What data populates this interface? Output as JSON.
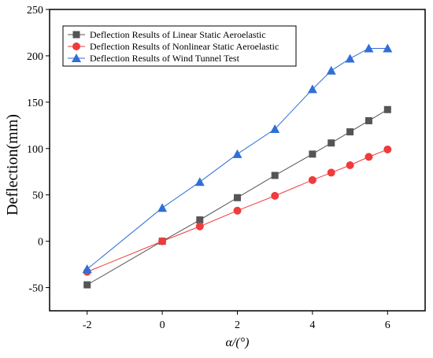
{
  "chart_data": {
    "type": "line",
    "xlabel": "α/(°)",
    "ylabel": "Deflection(mm)",
    "xlim": [
      -3,
      7
    ],
    "ylim": [
      -75,
      250
    ],
    "xticks": [
      -2,
      0,
      2,
      4,
      6
    ],
    "yticks": [
      -50,
      0,
      50,
      100,
      150,
      200,
      250
    ],
    "grid": false,
    "legend_position": "top-left",
    "series": [
      {
        "name": "Deflection Results of  Linear Static Aeroelastic",
        "color": "#555555",
        "marker": "square",
        "x": [
          -2,
          0,
          1,
          2,
          3,
          4,
          4.5,
          5,
          5.5,
          6
        ],
        "y": [
          -47,
          0,
          23,
          47,
          71,
          94,
          106,
          118,
          130,
          142
        ]
      },
      {
        "name": "Deflection Results of  Nonlinear Static Aeroelastic",
        "color": "#ef3b3b",
        "marker": "circle",
        "x": [
          -2,
          0,
          1,
          2,
          3,
          4,
          4.5,
          5,
          5.5,
          6
        ],
        "y": [
          -33,
          0,
          16,
          33,
          49,
          66,
          74,
          82,
          91,
          99
        ]
      },
      {
        "name": "Deflection Results of Wind Tunnel Test",
        "color": "#2f6fd6",
        "marker": "triangle",
        "x": [
          -2,
          0,
          1,
          2,
          3,
          4,
          4.5,
          5,
          5.5,
          6
        ],
        "y": [
          -30,
          36,
          64,
          94,
          121,
          164,
          184,
          197,
          208,
          208
        ]
      }
    ]
  }
}
